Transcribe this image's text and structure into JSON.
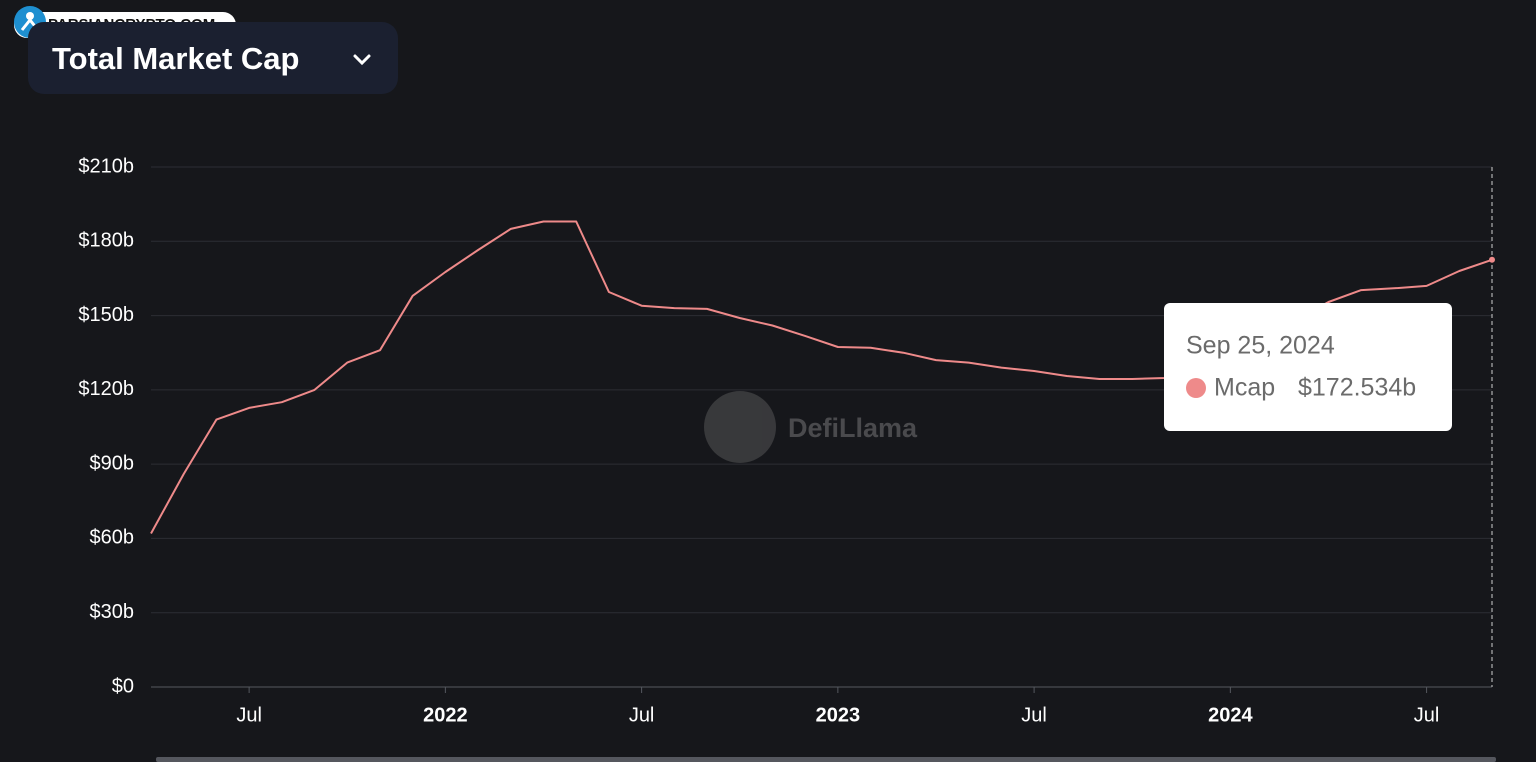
{
  "site": "PARSIANCRYPTO.COM",
  "chart_data": {
    "type": "line",
    "title": "Total Market Cap",
    "annotations": [
      "DefiLlama"
    ],
    "x": [
      "2021-04",
      "2021-05",
      "2021-06",
      "2021-07",
      "2021-08",
      "2021-09",
      "2021-10",
      "2021-11",
      "2021-12",
      "2022-01",
      "2022-02",
      "2022-03",
      "2022-04",
      "2022-05",
      "2022-06",
      "2022-07",
      "2022-08",
      "2022-09",
      "2022-10",
      "2022-11",
      "2022-12",
      "2023-01",
      "2023-02",
      "2023-03",
      "2023-04",
      "2023-05",
      "2023-06",
      "2023-07",
      "2023-08",
      "2023-09",
      "2023-10",
      "2023-11",
      "2023-12",
      "2024-01",
      "2024-02",
      "2024-03",
      "2024-04",
      "2024-05",
      "2024-06",
      "2024-07",
      "2024-08",
      "2024-09"
    ],
    "series": [
      {
        "name": "Mcap",
        "color": "#ee8a8a",
        "values": [
          62,
          86,
          108,
          112.7,
          115,
          120,
          131,
          136,
          158,
          167.6,
          176.5,
          185,
          188,
          188,
          159.5,
          154,
          153,
          152.7,
          149,
          146,
          141.8,
          137.3,
          137,
          135,
          132,
          131,
          129,
          127.6,
          125.6,
          124.4,
          124.4,
          124.8,
          128.8,
          134,
          140,
          148,
          155.5,
          160.3,
          161,
          162,
          168,
          172.534
        ]
      }
    ],
    "xlim": [
      "2021-04",
      "2024-09"
    ],
    "xticks": [
      {
        "value": "2021-07",
        "label": "Jul"
      },
      {
        "value": "2022-01",
        "label": "2022"
      },
      {
        "value": "2022-07",
        "label": "Jul"
      },
      {
        "value": "2023-01",
        "label": "2023"
      },
      {
        "value": "2023-07",
        "label": "Jul"
      },
      {
        "value": "2024-01",
        "label": "2024"
      },
      {
        "value": "2024-07",
        "label": "Jul"
      }
    ],
    "ylim": [
      0,
      210
    ],
    "yticks": [
      {
        "value": 0,
        "label": "$0"
      },
      {
        "value": 30,
        "label": "$30b"
      },
      {
        "value": 60,
        "label": "$60b"
      },
      {
        "value": 90,
        "label": "$90b"
      },
      {
        "value": 120,
        "label": "$120b"
      },
      {
        "value": 150,
        "label": "$150b"
      },
      {
        "value": 180,
        "label": "$180b"
      },
      {
        "value": 210,
        "label": "$210b"
      }
    ],
    "grid": true,
    "tooltip": {
      "date": "Sep 25, 2024",
      "label": "$172.534b"
    }
  }
}
